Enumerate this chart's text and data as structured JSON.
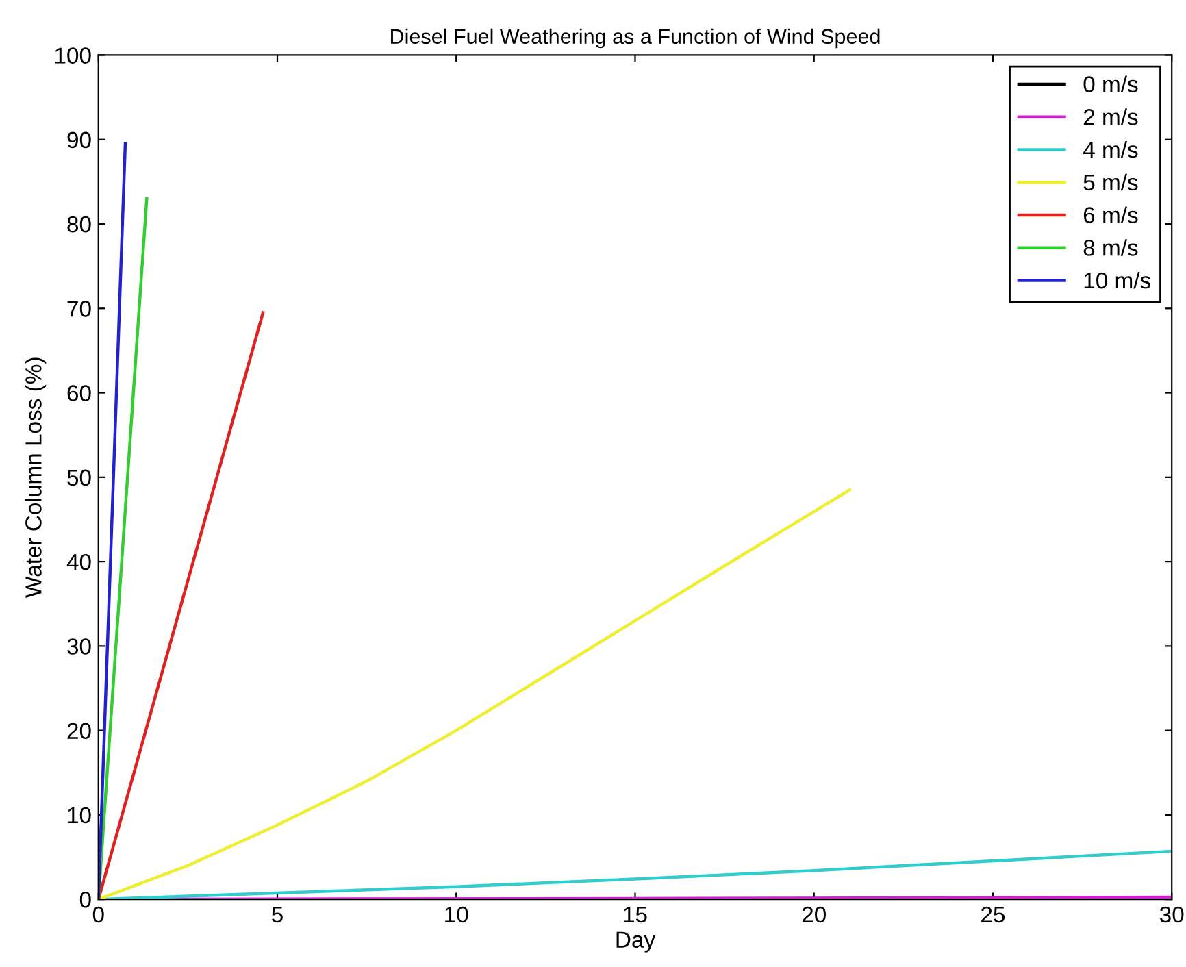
{
  "chart_data": {
    "type": "line",
    "title": "Diesel Fuel Weathering as a Function of Wind Speed",
    "xlabel": "Day",
    "ylabel": "Water Column Loss (%)",
    "xlim": [
      0,
      30
    ],
    "ylim": [
      0,
      100
    ],
    "xticks": [
      0,
      5,
      10,
      15,
      20,
      25,
      30
    ],
    "yticks": [
      0,
      10,
      20,
      30,
      40,
      50,
      60,
      70,
      80,
      90,
      100
    ],
    "grid": false,
    "legend": "top right",
    "line_style": "solid",
    "series": [
      {
        "name": "0 m/s",
        "color": "#000000",
        "x": [
          0,
          30
        ],
        "values": [
          0,
          0
        ]
      },
      {
        "name": "2 m/s",
        "color": "#cc22cc",
        "x": [
          0,
          15,
          30
        ],
        "values": [
          0,
          0.1,
          0.25
        ]
      },
      {
        "name": "4 m/s",
        "color": "#33cccc",
        "x": [
          0,
          10,
          15,
          20,
          30
        ],
        "values": [
          0,
          1.5,
          2.4,
          3.4,
          5.7
        ]
      },
      {
        "name": "5 m/s",
        "color": "#eeee33",
        "x": [
          0,
          2.5,
          5,
          7.5,
          10,
          12.5,
          15,
          17.5,
          21
        ],
        "values": [
          0,
          4,
          8.8,
          14,
          20,
          26.5,
          33,
          39.5,
          48.5
        ]
      },
      {
        "name": "6 m/s",
        "color": "#dd2222",
        "x": [
          0,
          4.6
        ],
        "values": [
          0,
          69.5
        ]
      },
      {
        "name": "8 m/s",
        "color": "#33cc33",
        "x": [
          0,
          1.35
        ],
        "values": [
          0,
          83
        ]
      },
      {
        "name": "10 m/s",
        "color": "#2222cc",
        "x": [
          0,
          0.75
        ],
        "values": [
          0,
          89.5
        ]
      }
    ]
  }
}
